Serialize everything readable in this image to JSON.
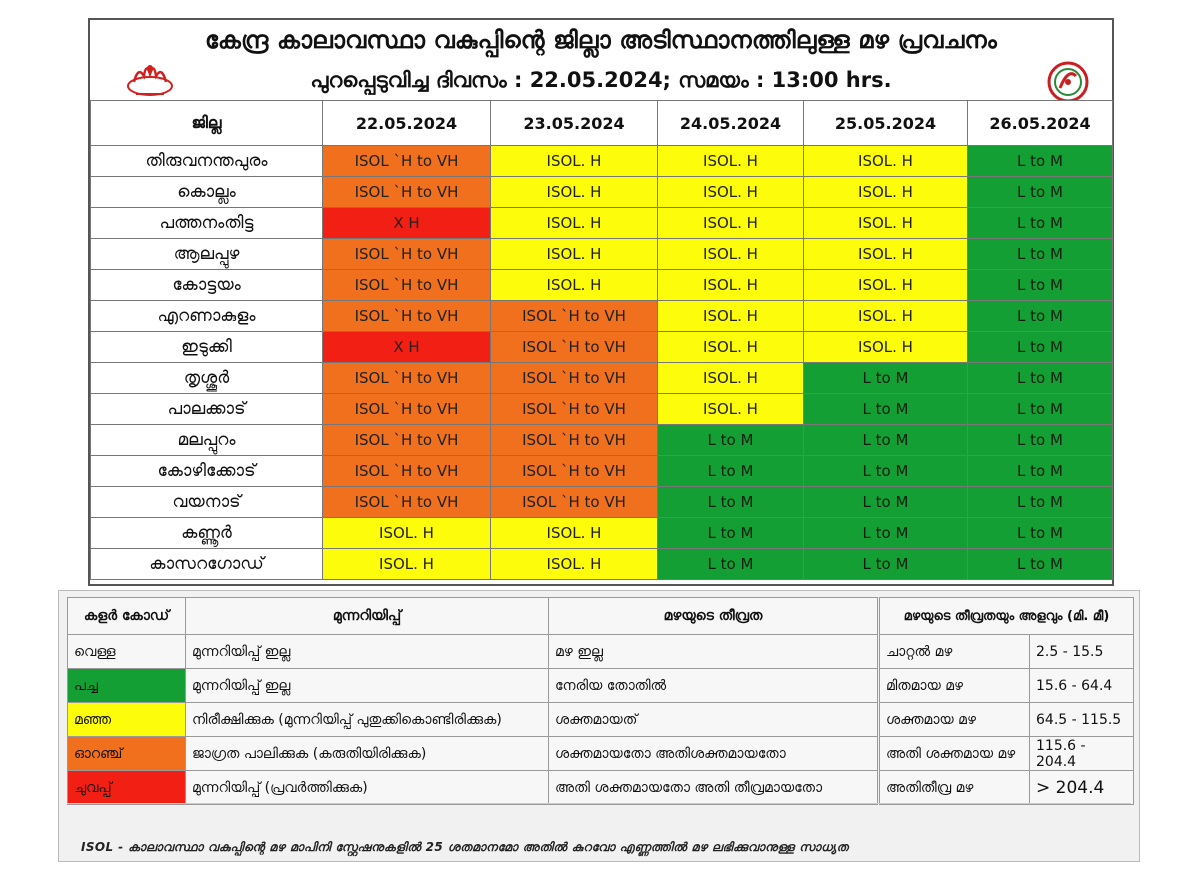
{
  "header": {
    "title": "കേന്ദ്ര കാലാവസ്ഥാ വകുപ്പിന്റെ ജില്ലാ അടിസ്ഥാനത്തിലുള്ള മഴ പ്രവചനം",
    "subtitle": "പുറപ്പെടുവിച്ച ദിവസം : 22.05.2024; സമയം : 13:00 hrs."
  },
  "forecast": {
    "district_header": "ജില്ല",
    "dates": [
      "22.05.2024",
      "23.05.2024",
      "24.05.2024",
      "25.05.2024",
      "26.05.2024"
    ],
    "rows": [
      {
        "district": "തിരുവനന്തപുരം",
        "cells": [
          "ISOL `H to VH",
          "ISOL. H",
          "ISOL. H",
          "ISOL. H",
          "L to M"
        ],
        "colors": [
          "orange",
          "yellow",
          "yellow",
          "yellow",
          "green"
        ]
      },
      {
        "district": "കൊല്ലം",
        "cells": [
          "ISOL `H to VH",
          "ISOL. H",
          "ISOL. H",
          "ISOL. H",
          "L to M"
        ],
        "colors": [
          "orange",
          "yellow",
          "yellow",
          "yellow",
          "green"
        ]
      },
      {
        "district": "പത്തനംതിട്ട",
        "cells": [
          "X H",
          "ISOL. H",
          "ISOL. H",
          "ISOL. H",
          "L to M"
        ],
        "colors": [
          "red",
          "yellow",
          "yellow",
          "yellow",
          "green"
        ]
      },
      {
        "district": "ആലപ്പുഴ",
        "cells": [
          "ISOL `H to VH",
          "ISOL. H",
          "ISOL. H",
          "ISOL. H",
          "L to M"
        ],
        "colors": [
          "orange",
          "yellow",
          "yellow",
          "yellow",
          "green"
        ]
      },
      {
        "district": "കോട്ടയം",
        "cells": [
          "ISOL `H to VH",
          "ISOL. H",
          "ISOL. H",
          "ISOL. H",
          "L to M"
        ],
        "colors": [
          "orange",
          "yellow",
          "yellow",
          "yellow",
          "green"
        ]
      },
      {
        "district": "എറണാകുളം",
        "cells": [
          "ISOL `H to VH",
          "ISOL `H to VH",
          "ISOL. H",
          "ISOL. H",
          "L to M"
        ],
        "colors": [
          "orange",
          "orange",
          "yellow",
          "yellow",
          "green"
        ]
      },
      {
        "district": "ഇടുക്കി",
        "cells": [
          "X H",
          "ISOL `H to VH",
          "ISOL. H",
          "ISOL. H",
          "L to M"
        ],
        "colors": [
          "red",
          "orange",
          "yellow",
          "yellow",
          "green"
        ]
      },
      {
        "district": "തൃശ്ശൂർ",
        "cells": [
          "ISOL `H to VH",
          "ISOL `H to VH",
          "ISOL. H",
          "L to M",
          "L to M"
        ],
        "colors": [
          "orange",
          "orange",
          "yellow",
          "green",
          "green"
        ]
      },
      {
        "district": "പാലക്കാട്",
        "cells": [
          "ISOL `H to VH",
          "ISOL `H to VH",
          "ISOL. H",
          "L to M",
          "L to M"
        ],
        "colors": [
          "orange",
          "orange",
          "yellow",
          "green",
          "green"
        ]
      },
      {
        "district": "മലപ്പുറം",
        "cells": [
          "ISOL `H to VH",
          "ISOL `H to VH",
          "L to M",
          "L to M",
          "L to M"
        ],
        "colors": [
          "orange",
          "orange",
          "green",
          "green",
          "green"
        ]
      },
      {
        "district": "കോഴിക്കോട്",
        "cells": [
          "ISOL `H to VH",
          "ISOL `H to VH",
          "L to M",
          "L to M",
          "L to M"
        ],
        "colors": [
          "orange",
          "orange",
          "green",
          "green",
          "green"
        ]
      },
      {
        "district": "വയനാട്",
        "cells": [
          "ISOL `H to VH",
          "ISOL `H to VH",
          "L to M",
          "L to M",
          "L to M"
        ],
        "colors": [
          "orange",
          "orange",
          "green",
          "green",
          "green"
        ]
      },
      {
        "district": "കണ്ണൂർ",
        "cells": [
          "ISOL. H",
          "ISOL. H",
          "L to M",
          "L to M",
          "L to M"
        ],
        "colors": [
          "yellow",
          "yellow",
          "green",
          "green",
          "green"
        ]
      },
      {
        "district": "കാസറഗോഡ്",
        "cells": [
          "ISOL. H",
          "ISOL. H",
          "L to M",
          "L to M",
          "L to M"
        ],
        "colors": [
          "yellow",
          "yellow",
          "green",
          "green",
          "green"
        ]
      }
    ]
  },
  "colors": {
    "red": "#f21f14",
    "orange": "#f0701e",
    "yellow": "#fdfc0b",
    "green": "#139f33",
    "white": "#f7f7f7"
  },
  "legend": {
    "headers": [
      "കളർ കോഡ്",
      "മുന്നറിയിപ്പ്",
      "മഴയുടെ തീവ്രത"
    ],
    "rows": [
      {
        "code": "വെള്ള",
        "color": "white",
        "warning": "മുന്നറിയിപ്പ് ഇല്ല",
        "intensity": "മഴ ഇല്ല"
      },
      {
        "code": "പച്ച",
        "color": "green",
        "warning": "മുന്നറിയിപ്പ് ഇല്ല",
        "intensity": "നേരിയ തോതിൽ"
      },
      {
        "code": "മഞ്ഞ",
        "color": "yellow",
        "warning": "നിരീക്ഷിക്കുക (മുന്നറിയിപ്പ് പുതുക്കികൊണ്ടിരിക്കുക)",
        "intensity": "ശക്തമായത്"
      },
      {
        "code": "ഓറഞ്ച്",
        "color": "orange",
        "warning": "ജാഗ്രത പാലിക്കുക (കരുതിയിരിക്കുക)",
        "intensity": "ശക്തമായതോ അതിശക്തമായതോ"
      },
      {
        "code": "ചുവപ്പ്",
        "color": "red",
        "warning": "മുന്നറിയിപ്പ് (പ്രവർത്തിക്കുക)",
        "intensity": "അതി ശക്തമായതോ അതി തീവ്രമായതോ"
      }
    ]
  },
  "rainfall": {
    "header": "മഴയുടെ തീവ്രതയും അളവും (മി. മീ)",
    "rows": [
      {
        "label": "ചാറ്റൽ മഴ",
        "range": "2.5 - 15.5"
      },
      {
        "label": "മിതമായ മഴ",
        "range": "15.6 - 64.4"
      },
      {
        "label": "ശക്തമായ മഴ",
        "range": "64.5 - 115.5"
      },
      {
        "label": "അതി ശക്തമായ മഴ",
        "range": "115.6 - 204.4"
      },
      {
        "label": "അതിതീവ്ര മഴ",
        "range": ">  204.4"
      }
    ]
  },
  "footnote": "ISOL - കാലാവസ്ഥാ വകുപ്പിന്റെ മഴ മാപിനി സ്റ്റേഷനുകളിൽ 25 ശതമാനമോ അതിൽ കുറവോ എണ്ണത്തിൽ മഴ ലഭിക്കുവാനുള്ള സാധ്യത"
}
